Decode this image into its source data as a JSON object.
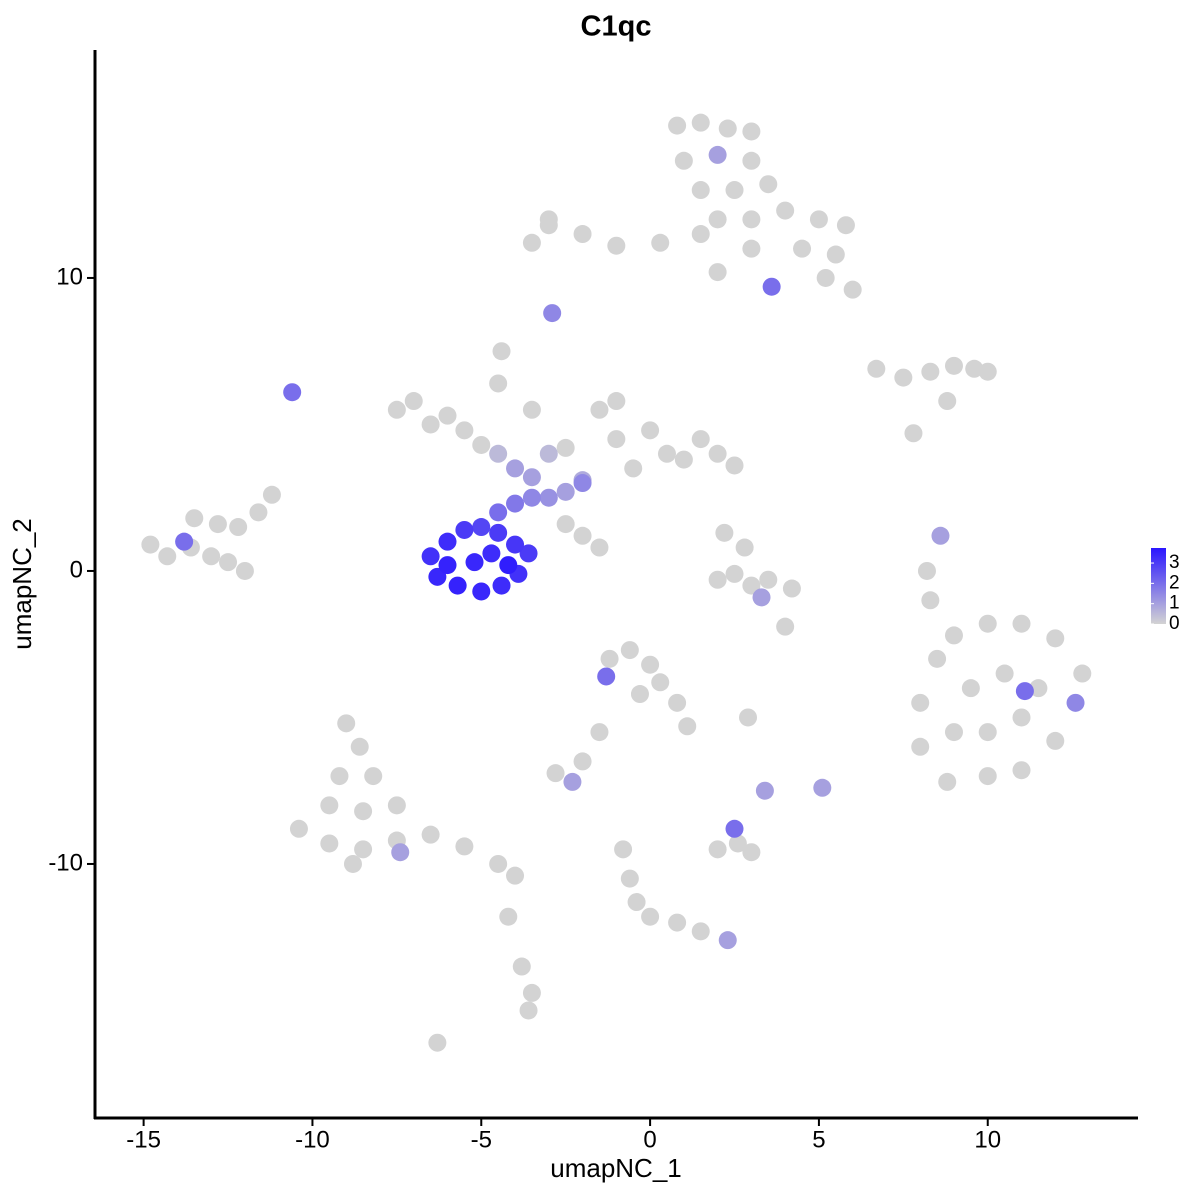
{
  "chart_data": {
    "type": "scatter",
    "title": "C1qc",
    "xlabel": "umapNC_1",
    "ylabel": "umapNC_2",
    "xlim": [
      -16.44,
      14.45
    ],
    "ylim": [
      -18.67,
      17.78
    ],
    "xticks": [
      -15,
      -10,
      -5,
      0,
      5,
      10
    ],
    "yticks": [
      -10,
      0,
      10
    ],
    "color_low": "#d3d3d3",
    "color_high": "#2a16ff",
    "color_lim": [
      0,
      3.74
    ],
    "color_ticks": [
      3,
      2,
      1,
      0
    ],
    "x": [
      0.8,
      1.5,
      2.3,
      3,
      1,
      2,
      3,
      1.5,
      2.5,
      3.5,
      2,
      3,
      4,
      5,
      5.8,
      4.5,
      5.5,
      6,
      5.2,
      3,
      0.3,
      -1,
      -2,
      -3,
      -3.5,
      -3,
      1.5,
      2,
      3.6,
      -2.9,
      -7.5,
      -7,
      -6.5,
      -6,
      -5.5,
      -5,
      -4.5,
      -4,
      -3.5,
      -3,
      -2.5,
      -1.5,
      -1,
      -1,
      0,
      0.5,
      1,
      1.5,
      2,
      2.5,
      -0.5,
      -2,
      -4.5,
      -4.4,
      -3.5,
      -6.5,
      -6,
      -5.5,
      -5,
      -4.5,
      -4,
      -3.6,
      -6.3,
      -5.7,
      -5,
      -4.4,
      -3.9,
      -5.2,
      -4.7,
      -6,
      -4.2,
      -4.5,
      -4,
      -3.5,
      -3,
      -2.5,
      -2,
      -2.5,
      -2,
      -1.5,
      -14.8,
      -14.3,
      -13.6,
      -13,
      -12.5,
      -13.5,
      -12.8,
      -12.2,
      -11.6,
      -11.2,
      -12,
      -13.8,
      -10.6,
      -9,
      -8.6,
      -9.2,
      -8.2,
      -9.5,
      -8.5,
      -7.5,
      -10.4,
      -9.5,
      -8.5,
      -7.5,
      -6.5,
      -5.5,
      -4.5,
      -4,
      -8.8,
      -4.2,
      -3.8,
      -3.5,
      -3.6,
      -6.3,
      -7.4,
      -1.2,
      -0.6,
      0,
      0.3,
      -0.3,
      0.8,
      1.1,
      -1.3,
      -1.5,
      -2,
      -2.8,
      -2.3,
      -0.8,
      -0.6,
      -0.4,
      0,
      0.8,
      1.5,
      2.3,
      2,
      2.6,
      3,
      2.5,
      3.4,
      5.1,
      2.9,
      8,
      8.5,
      9,
      10,
      11,
      12,
      12.8,
      12.6,
      12,
      11,
      10,
      8.8,
      8,
      9.5,
      10.5,
      11.5,
      10,
      11,
      9,
      11.1,
      6.7,
      7.5,
      8.3,
      9,
      9.6,
      10,
      8.8,
      7.8,
      2.2,
      2.8,
      2.5,
      3,
      3.5,
      4.2,
      3.3,
      2,
      4,
      8.6,
      8.2,
      8.3
    ],
    "y": [
      15.2,
      15.3,
      15.1,
      15,
      14,
      14.2,
      14,
      13,
      13,
      13.2,
      12,
      12,
      12.3,
      12,
      11.8,
      11,
      10.8,
      9.6,
      10,
      11,
      11.2,
      11.1,
      11.5,
      11.8,
      11.2,
      12,
      11.5,
      10.2,
      9.7,
      8.8,
      5.5,
      5.8,
      5,
      5.3,
      4.8,
      4.3,
      4,
      3.5,
      3.2,
      4,
      4.2,
      5.5,
      5.8,
      4.5,
      4.8,
      4,
      3.8,
      4.5,
      4,
      3.6,
      3.5,
      3,
      6.4,
      7.5,
      5.5,
      0.5,
      1,
      1.4,
      1.5,
      1.3,
      0.9,
      0.6,
      -0.2,
      -0.5,
      -0.7,
      -0.5,
      -0.1,
      0.3,
      0.6,
      0.2,
      0.2,
      2,
      2.3,
      2.5,
      2.5,
      2.7,
      3.1,
      1.6,
      1.2,
      0.8,
      0.9,
      0.5,
      0.8,
      0.5,
      0.3,
      1.8,
      1.6,
      1.5,
      2,
      2.6,
      0,
      1,
      6.1,
      -5.2,
      -6,
      -7,
      -7,
      -8,
      -8.2,
      -8,
      -8.8,
      -9.3,
      -9.5,
      -9.2,
      -9,
      -9.4,
      -10,
      -10.4,
      -10,
      -11.8,
      -13.5,
      -14.4,
      -15,
      -16.1,
      -9.6,
      -3,
      -2.7,
      -3.2,
      -3.8,
      -4.2,
      -4.5,
      -5.3,
      -3.6,
      -5.5,
      -6.5,
      -6.9,
      -7.2,
      -9.5,
      -10.5,
      -11.3,
      -11.8,
      -12,
      -12.3,
      -12.6,
      -9.5,
      -9.3,
      -9.6,
      -8.8,
      -7.5,
      -7.4,
      -5,
      -4.5,
      -3,
      -2.2,
      -1.8,
      -1.8,
      -2.3,
      -3.5,
      -4.5,
      -5.8,
      -6.8,
      -7,
      -7.2,
      -6,
      -4,
      -3.5,
      -4,
      -5.5,
      -5,
      -5.5,
      -4.1,
      6.9,
      6.6,
      6.8,
      7,
      6.9,
      6.8,
      5.8,
      4.7,
      1.3,
      0.8,
      -0.1,
      -0.5,
      -0.3,
      -0.6,
      -0.9,
      -0.3,
      -1.9,
      1.2,
      0,
      -1
    ],
    "values": [
      0,
      0,
      0,
      0,
      0,
      1,
      0,
      0,
      0,
      0,
      0,
      0,
      0,
      0,
      0,
      0,
      0,
      0,
      0,
      0,
      0,
      0,
      0,
      0,
      0,
      0,
      0,
      0,
      2,
      1.5,
      0,
      0,
      0,
      0,
      0,
      0,
      0.5,
      1,
      1,
      0.5,
      0,
      0,
      0,
      0,
      0,
      0,
      0,
      0,
      0,
      0,
      0,
      1.5,
      0,
      0,
      0,
      3.2,
      3.3,
      3,
      2.8,
      3,
      3.1,
      3,
      3.4,
      3.5,
      3.4,
      3.3,
      3.2,
      3.4,
      3.3,
      3.5,
      3.6,
      2,
      1.8,
      1.5,
      1.3,
      1,
      0.8,
      0,
      0,
      0,
      0,
      0,
      0,
      0,
      0,
      0,
      0,
      0,
      0,
      0,
      0,
      2,
      2,
      0,
      0,
      0,
      0,
      0,
      0,
      0,
      0,
      0,
      0,
      0,
      0,
      0,
      0,
      0,
      0,
      0,
      0,
      0,
      0,
      0,
      1,
      0,
      0,
      0,
      0,
      0,
      0,
      0,
      2,
      0,
      0,
      0,
      1,
      0,
      0,
      0,
      0,
      0,
      0,
      1,
      0,
      0,
      0,
      2,
      1,
      1,
      0,
      0,
      0,
      0,
      0,
      0,
      0,
      0,
      1.5,
      0,
      0,
      0,
      0,
      0,
      0,
      0,
      0,
      0,
      0,
      0,
      2,
      0,
      0,
      0,
      0,
      0,
      0,
      0,
      0,
      0,
      0,
      0,
      0,
      0,
      0,
      1,
      0,
      0,
      1,
      0,
      0
    ]
  }
}
